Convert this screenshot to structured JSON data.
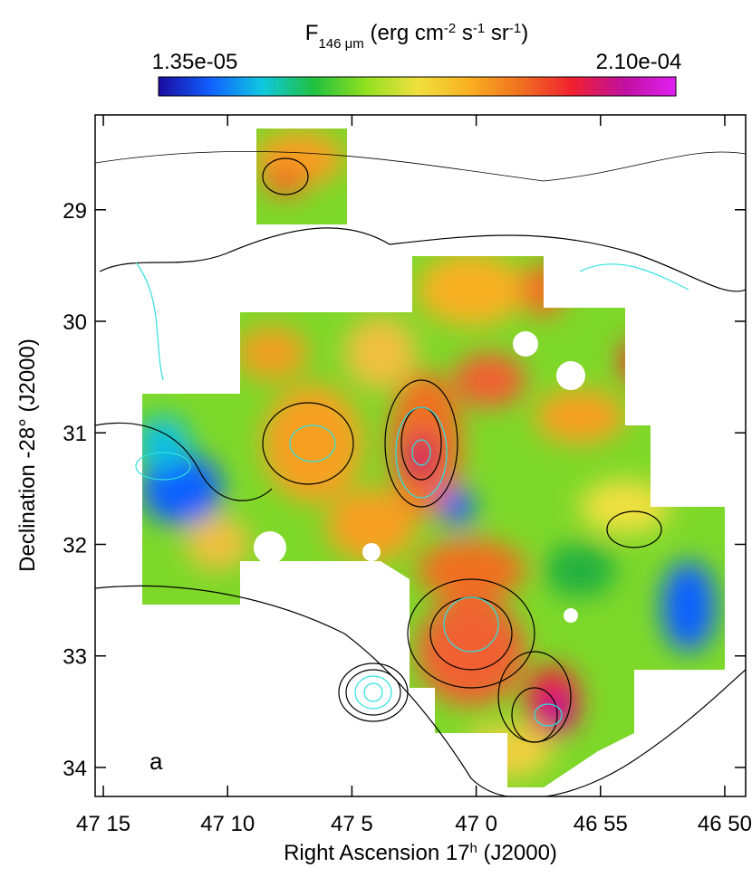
{
  "chart_data": {
    "type": "map",
    "title_parts": [
      {
        "text": "F"
      },
      {
        "text": "146 μm",
        "shift": "sub"
      },
      {
        "text": " (erg cm"
      },
      {
        "text": "-2",
        "shift": "super"
      },
      {
        "text": " s"
      },
      {
        "text": "-1",
        "shift": "super"
      },
      {
        "text": " sr"
      },
      {
        "text": "-1",
        "shift": "super"
      },
      {
        "text": ")"
      }
    ],
    "clim": [
      {
        "value": 1.35e-05,
        "label": "1.35e-05"
      },
      {
        "value": 0.00021,
        "label": "2.10e-04"
      }
    ],
    "colormap": [
      "#1a0aa0",
      "#1060ff",
      "#10c8e0",
      "#20c040",
      "#90e020",
      "#f0e040",
      "#f8b020",
      "#f07020",
      "#f02030",
      "#c010a0",
      "#e020f0"
    ],
    "x_label_parts": [
      {
        "text": "Right Ascension   17"
      },
      {
        "text": "h",
        "shift": "super"
      },
      {
        "text": " (J2000)"
      }
    ],
    "y_label": "Declination  -28° (J2000)",
    "xlim": [
      75.33,
      49.16
    ],
    "xticks": [
      {
        "value": 75,
        "label": "47 15"
      },
      {
        "value": 70,
        "label": "47 10"
      },
      {
        "value": 65,
        "label": "47 5"
      },
      {
        "value": 60,
        "label": "47 0"
      },
      {
        "value": 55,
        "label": "46 55"
      },
      {
        "value": 50,
        "label": "46 50"
      }
    ],
    "ylim": [
      34.26,
      28.15
    ],
    "yticks": [
      29,
      30,
      31,
      32,
      33,
      34
    ],
    "annotation": "a"
  }
}
